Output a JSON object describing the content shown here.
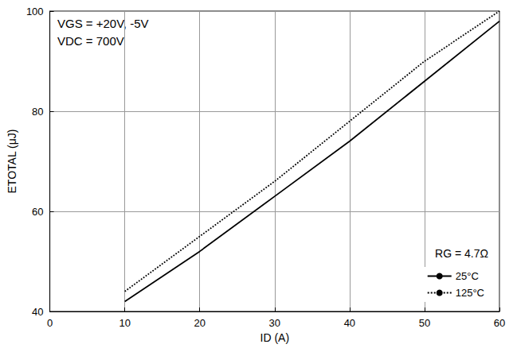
{
  "chart_data": {
    "type": "line",
    "x_label": "ID (A)",
    "y_label": "ETOTAL (μJ)",
    "annotations": [
      "VGS = +20V, -5V",
      "VDC = 700V",
      "RG = 4.7Ω"
    ],
    "x": [
      10,
      20,
      30,
      40,
      50,
      60
    ],
    "series": [
      {
        "name": "25°C",
        "color": "#000000",
        "line_style": "solid",
        "values": [
          42,
          52,
          63,
          74,
          86,
          98
        ]
      },
      {
        "name": "125°C",
        "color": "#000000",
        "line_style": "dotted",
        "values": [
          44,
          55,
          66,
          78,
          90,
          100
        ]
      }
    ],
    "xlim": [
      0,
      60
    ],
    "xticks": [
      0,
      10,
      20,
      30,
      40,
      50,
      60
    ],
    "ylim": [
      40,
      100
    ],
    "yticks": [
      40,
      60,
      80,
      100
    ],
    "grid": true,
    "legend": "lower right"
  }
}
